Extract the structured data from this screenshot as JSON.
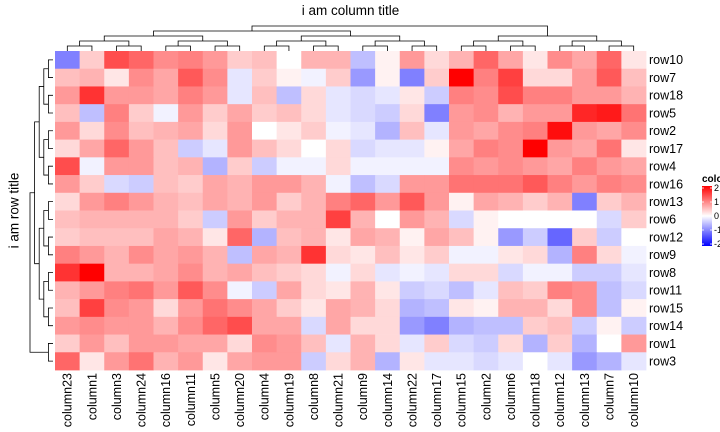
{
  "chart_data": {
    "type": "heatmap",
    "title": "i am column title",
    "ylabel": "i am row title",
    "columns": [
      "column23",
      "column1",
      "column3",
      "column24",
      "column16",
      "column11",
      "column5",
      "column20",
      "column4",
      "column19",
      "column8",
      "column21",
      "column9",
      "column14",
      "column22",
      "column17",
      "column15",
      "column2",
      "column6",
      "column18",
      "column12",
      "column13",
      "column7",
      "column10"
    ],
    "rows": [
      "row10",
      "row7",
      "row18",
      "row5",
      "row2",
      "row17",
      "row4",
      "row16",
      "row13",
      "row6",
      "row12",
      "row9",
      "row8",
      "row11",
      "row15",
      "row14",
      "row1",
      "row3"
    ],
    "values": [
      [
        -1.0,
        0.4,
        1.4,
        1.2,
        0.9,
        1.0,
        0.8,
        0.4,
        0.5,
        0.0,
        0.6,
        0.6,
        -0.5,
        0.1,
        0.8,
        0.3,
        0.6,
        1.2,
        0.7,
        0.2,
        0.9,
        0.7,
        1.2,
        0.2
      ],
      [
        0.5,
        0.6,
        0.2,
        0.9,
        0.7,
        1.3,
        0.9,
        -0.2,
        0.4,
        0.1,
        -0.1,
        0.4,
        -0.8,
        0.1,
        -1.0,
        0.4,
        2.0,
        1.0,
        1.5,
        0.3,
        0.3,
        0.8,
        1.3,
        0.5
      ],
      [
        0.8,
        1.6,
        0.8,
        0.8,
        0.7,
        1.0,
        0.8,
        -0.2,
        0.5,
        -0.5,
        0.3,
        -0.2,
        -0.3,
        -0.2,
        0.2,
        -0.4,
        1.0,
        0.9,
        1.4,
        1.0,
        1.0,
        0.8,
        0.8,
        0.6
      ],
      [
        0.5,
        -0.5,
        1.0,
        0.4,
        -0.1,
        0.8,
        0.4,
        0.7,
        0.4,
        0.5,
        0.3,
        -0.2,
        -0.3,
        -0.4,
        0.3,
        -1.0,
        0.8,
        0.9,
        0.6,
        0.8,
        0.8,
        1.7,
        1.8,
        1.1
      ],
      [
        0.8,
        0.3,
        0.9,
        0.5,
        0.6,
        0.7,
        0.3,
        0.8,
        0.0,
        0.2,
        0.4,
        -0.1,
        -0.2,
        -0.6,
        0.5,
        -0.2,
        0.8,
        0.7,
        0.9,
        1.0,
        1.9,
        0.8,
        0.7,
        0.9
      ],
      [
        0.3,
        0.7,
        1.2,
        0.8,
        0.5,
        -0.4,
        -0.2,
        0.8,
        0.5,
        0.3,
        0.0,
        0.3,
        -0.3,
        -0.2,
        -0.2,
        0.1,
        0.7,
        1.0,
        0.9,
        2.1,
        0.8,
        0.7,
        1.1,
        0.2
      ],
      [
        1.4,
        -0.1,
        0.8,
        0.8,
        0.5,
        0.6,
        -0.6,
        0.4,
        -0.4,
        -0.1,
        -0.1,
        0.3,
        -0.1,
        -0.1,
        -0.1,
        -0.1,
        0.9,
        0.8,
        0.9,
        0.8,
        0.7,
        1.0,
        0.8,
        0.7
      ],
      [
        0.8,
        0.4,
        -0.3,
        -0.4,
        0.5,
        0.4,
        0.7,
        0.6,
        0.8,
        0.8,
        0.6,
        -0.1,
        -0.5,
        -0.3,
        0.8,
        0.8,
        1.1,
        1.1,
        1.1,
        1.3,
        1.0,
        0.8,
        1.0,
        0.9
      ],
      [
        0.3,
        0.8,
        1.0,
        0.8,
        0.6,
        0.5,
        0.7,
        0.6,
        0.8,
        0.4,
        0.6,
        1.0,
        1.2,
        0.8,
        1.3,
        0.8,
        0.1,
        0.7,
        0.6,
        0.4,
        0.6,
        -1.0,
        0.4,
        0.6
      ],
      [
        0.5,
        0.6,
        0.6,
        0.6,
        0.6,
        0.4,
        -0.4,
        0.8,
        0.4,
        0.6,
        0.6,
        1.5,
        0.6,
        0.0,
        0.8,
        0.6,
        -0.3,
        0.1,
        0.0,
        0.0,
        0.0,
        0.0,
        -0.3,
        0.4
      ],
      [
        0.4,
        0.5,
        0.5,
        0.5,
        0.7,
        0.6,
        0.2,
        1.2,
        -0.6,
        0.5,
        0.6,
        0.2,
        0.7,
        0.6,
        0.1,
        0.7,
        0.5,
        0.1,
        -0.8,
        -0.4,
        -1.2,
        0.4,
        -0.4,
        0.0
      ],
      [
        1.0,
        0.8,
        0.6,
        0.9,
        0.7,
        0.8,
        0.6,
        -0.5,
        0.7,
        0.6,
        1.6,
        0.3,
        0.2,
        0.5,
        0.2,
        0.4,
        -0.1,
        -0.1,
        0.2,
        0.3,
        -0.6,
        1.0,
        0.3,
        -0.1
      ],
      [
        1.6,
        2.4,
        0.6,
        0.6,
        0.7,
        0.9,
        0.6,
        0.7,
        0.5,
        0.4,
        0.3,
        -0.1,
        0.3,
        -0.2,
        -0.1,
        -0.2,
        0.3,
        0.3,
        -0.3,
        -0.1,
        -0.1,
        -0.4,
        -0.4,
        -0.2
      ],
      [
        0.6,
        0.8,
        1.0,
        1.1,
        0.8,
        1.3,
        0.9,
        -0.1,
        -0.4,
        0.7,
        0.3,
        0.2,
        0.6,
        0.2,
        -0.4,
        -0.3,
        -0.5,
        -0.2,
        0.5,
        0.4,
        1.0,
        0.9,
        -0.5,
        -0.3
      ],
      [
        0.5,
        1.5,
        0.9,
        0.8,
        0.3,
        0.8,
        1.1,
        0.9,
        0.7,
        0.4,
        0.2,
        0.7,
        0.6,
        0.3,
        -0.6,
        -0.5,
        0.2,
        0.1,
        0.6,
        0.6,
        0.3,
        0.9,
        -0.5,
        0.1
      ],
      [
        0.8,
        0.9,
        0.8,
        0.8,
        0.6,
        0.9,
        1.2,
        1.4,
        0.7,
        0.7,
        -0.3,
        0.7,
        0.3,
        0.3,
        -0.8,
        -1.0,
        -0.6,
        -0.5,
        -0.5,
        0.4,
        0.5,
        -0.4,
        0.1,
        -0.4
      ],
      [
        0.4,
        0.8,
        0.5,
        0.8,
        0.8,
        0.7,
        0.7,
        0.3,
        0.9,
        0.8,
        0.5,
        -0.2,
        0.6,
        0.3,
        -0.2,
        0.4,
        -0.3,
        -0.4,
        0.3,
        -0.6,
        0.4,
        -0.6,
        0.0,
        0.8
      ],
      [
        1.2,
        0.2,
        0.8,
        1.1,
        0.6,
        0.8,
        0.2,
        0.7,
        0.8,
        0.8,
        -0.4,
        0.3,
        0.6,
        -0.6,
        0.2,
        -0.2,
        -0.2,
        -0.3,
        -0.2,
        0.0,
        -0.2,
        -0.8,
        -0.6,
        -0.2
      ]
    ],
    "legend": {
      "title": "color",
      "ticks": [
        "2",
        "1",
        "0",
        "-1",
        "-2"
      ],
      "range": [
        -2,
        2
      ],
      "low_color": "#0000ff",
      "mid_color": "#ffffff",
      "high_color": "#ff0000",
      "placement": "right"
    }
  }
}
